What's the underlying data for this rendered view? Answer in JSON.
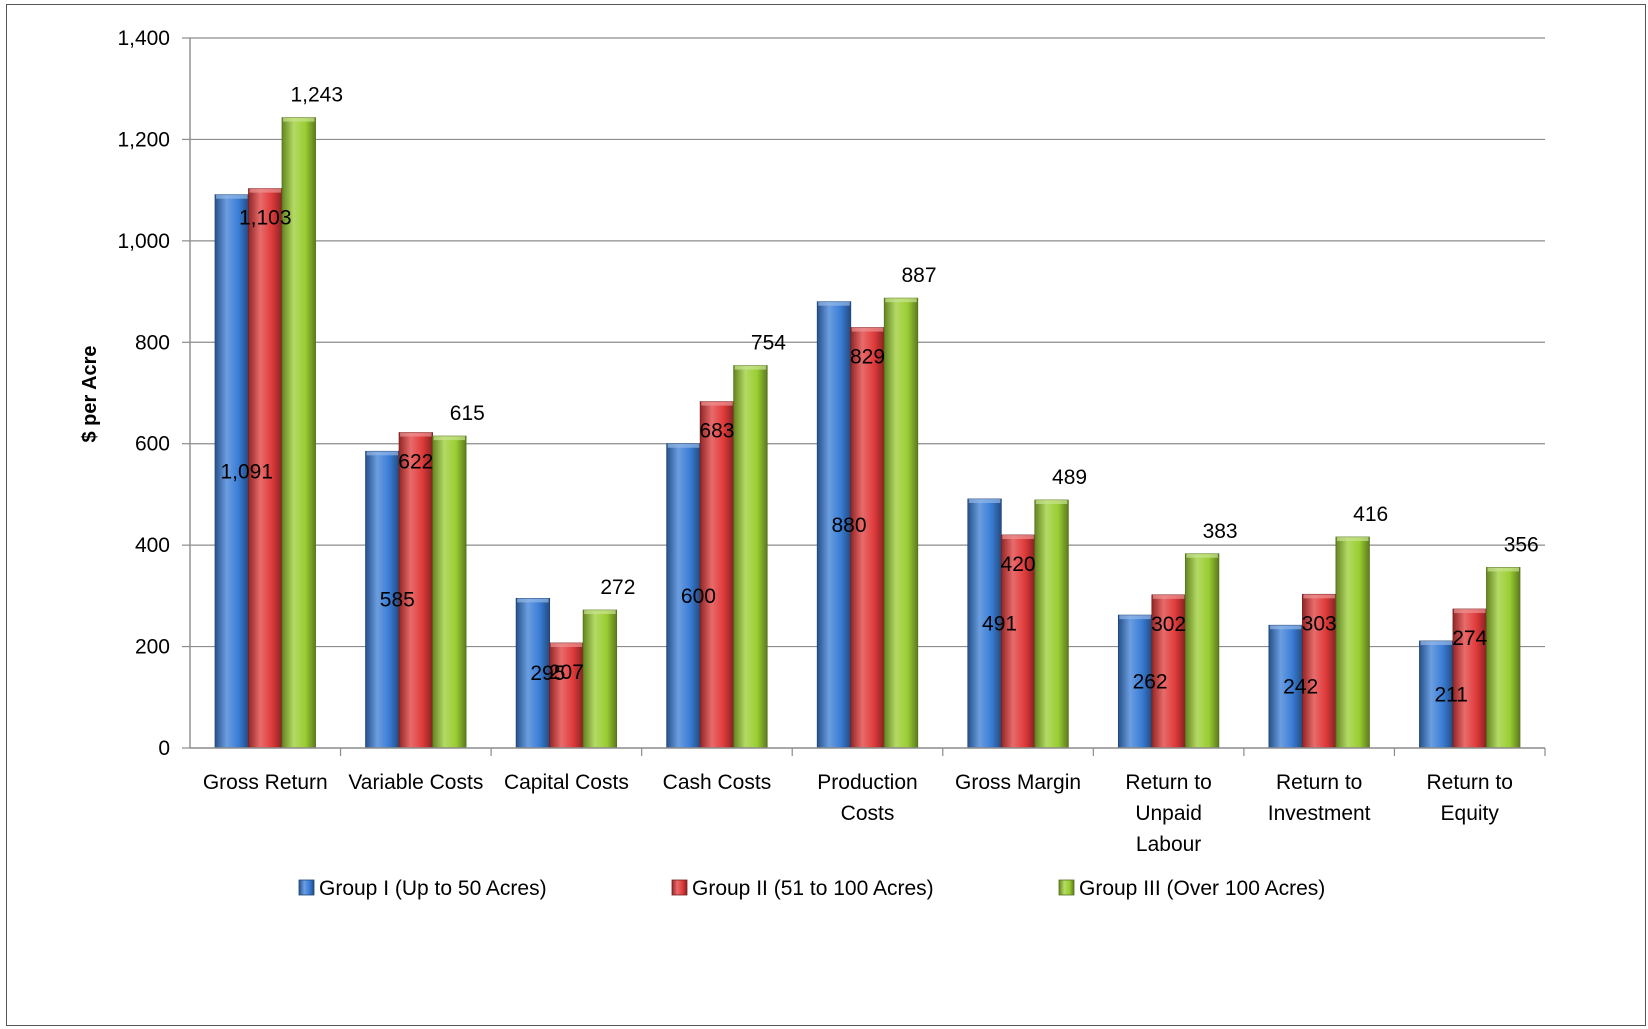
{
  "chart_data": {
    "type": "bar",
    "title": "",
    "xlabel": "",
    "ylabel": "$ per Acre",
    "ylim": [
      0,
      1400
    ],
    "yticks": [
      0,
      200,
      400,
      600,
      800,
      1000,
      1200,
      1400
    ],
    "ytick_labels": [
      "0",
      "200",
      "400",
      "600",
      "800",
      "1,000",
      "1,200",
      "1,400"
    ],
    "grid": true,
    "legend_position": "bottom",
    "categories": [
      [
        "Gross Return"
      ],
      [
        "Variable Costs"
      ],
      [
        "Capital Costs"
      ],
      [
        "Cash Costs"
      ],
      [
        "Production",
        "Costs"
      ],
      [
        "Gross Margin"
      ],
      [
        "Return to",
        "Unpaid",
        "Labour"
      ],
      [
        "Return to",
        "Investment"
      ],
      [
        "Return to",
        "Equity"
      ]
    ],
    "series": [
      {
        "name": "Group I (Up to 50 Acres)",
        "color": "#3a7dd6",
        "values": [
          1091,
          585,
          295,
          600,
          880,
          491,
          262,
          242,
          211
        ],
        "labels": [
          "1,091",
          "585",
          "295",
          "600",
          "880",
          "491",
          "262",
          "242",
          "211"
        ]
      },
      {
        "name": "Group II (51 to 100 Acres)",
        "color": "#e03a3a",
        "values": [
          1103,
          622,
          207,
          683,
          829,
          420,
          302,
          303,
          274
        ],
        "labels": [
          "1,103",
          "622",
          "207",
          "683",
          "829",
          "420",
          "302",
          "303",
          "274"
        ]
      },
      {
        "name": "Group III (Over 100 Acres)",
        "color": "#9acd32",
        "values": [
          1243,
          615,
          272,
          754,
          887,
          489,
          383,
          416,
          356
        ],
        "labels": [
          "1,243",
          "615",
          "272",
          "754",
          "887",
          "489",
          "383",
          "416",
          "356"
        ]
      }
    ]
  }
}
